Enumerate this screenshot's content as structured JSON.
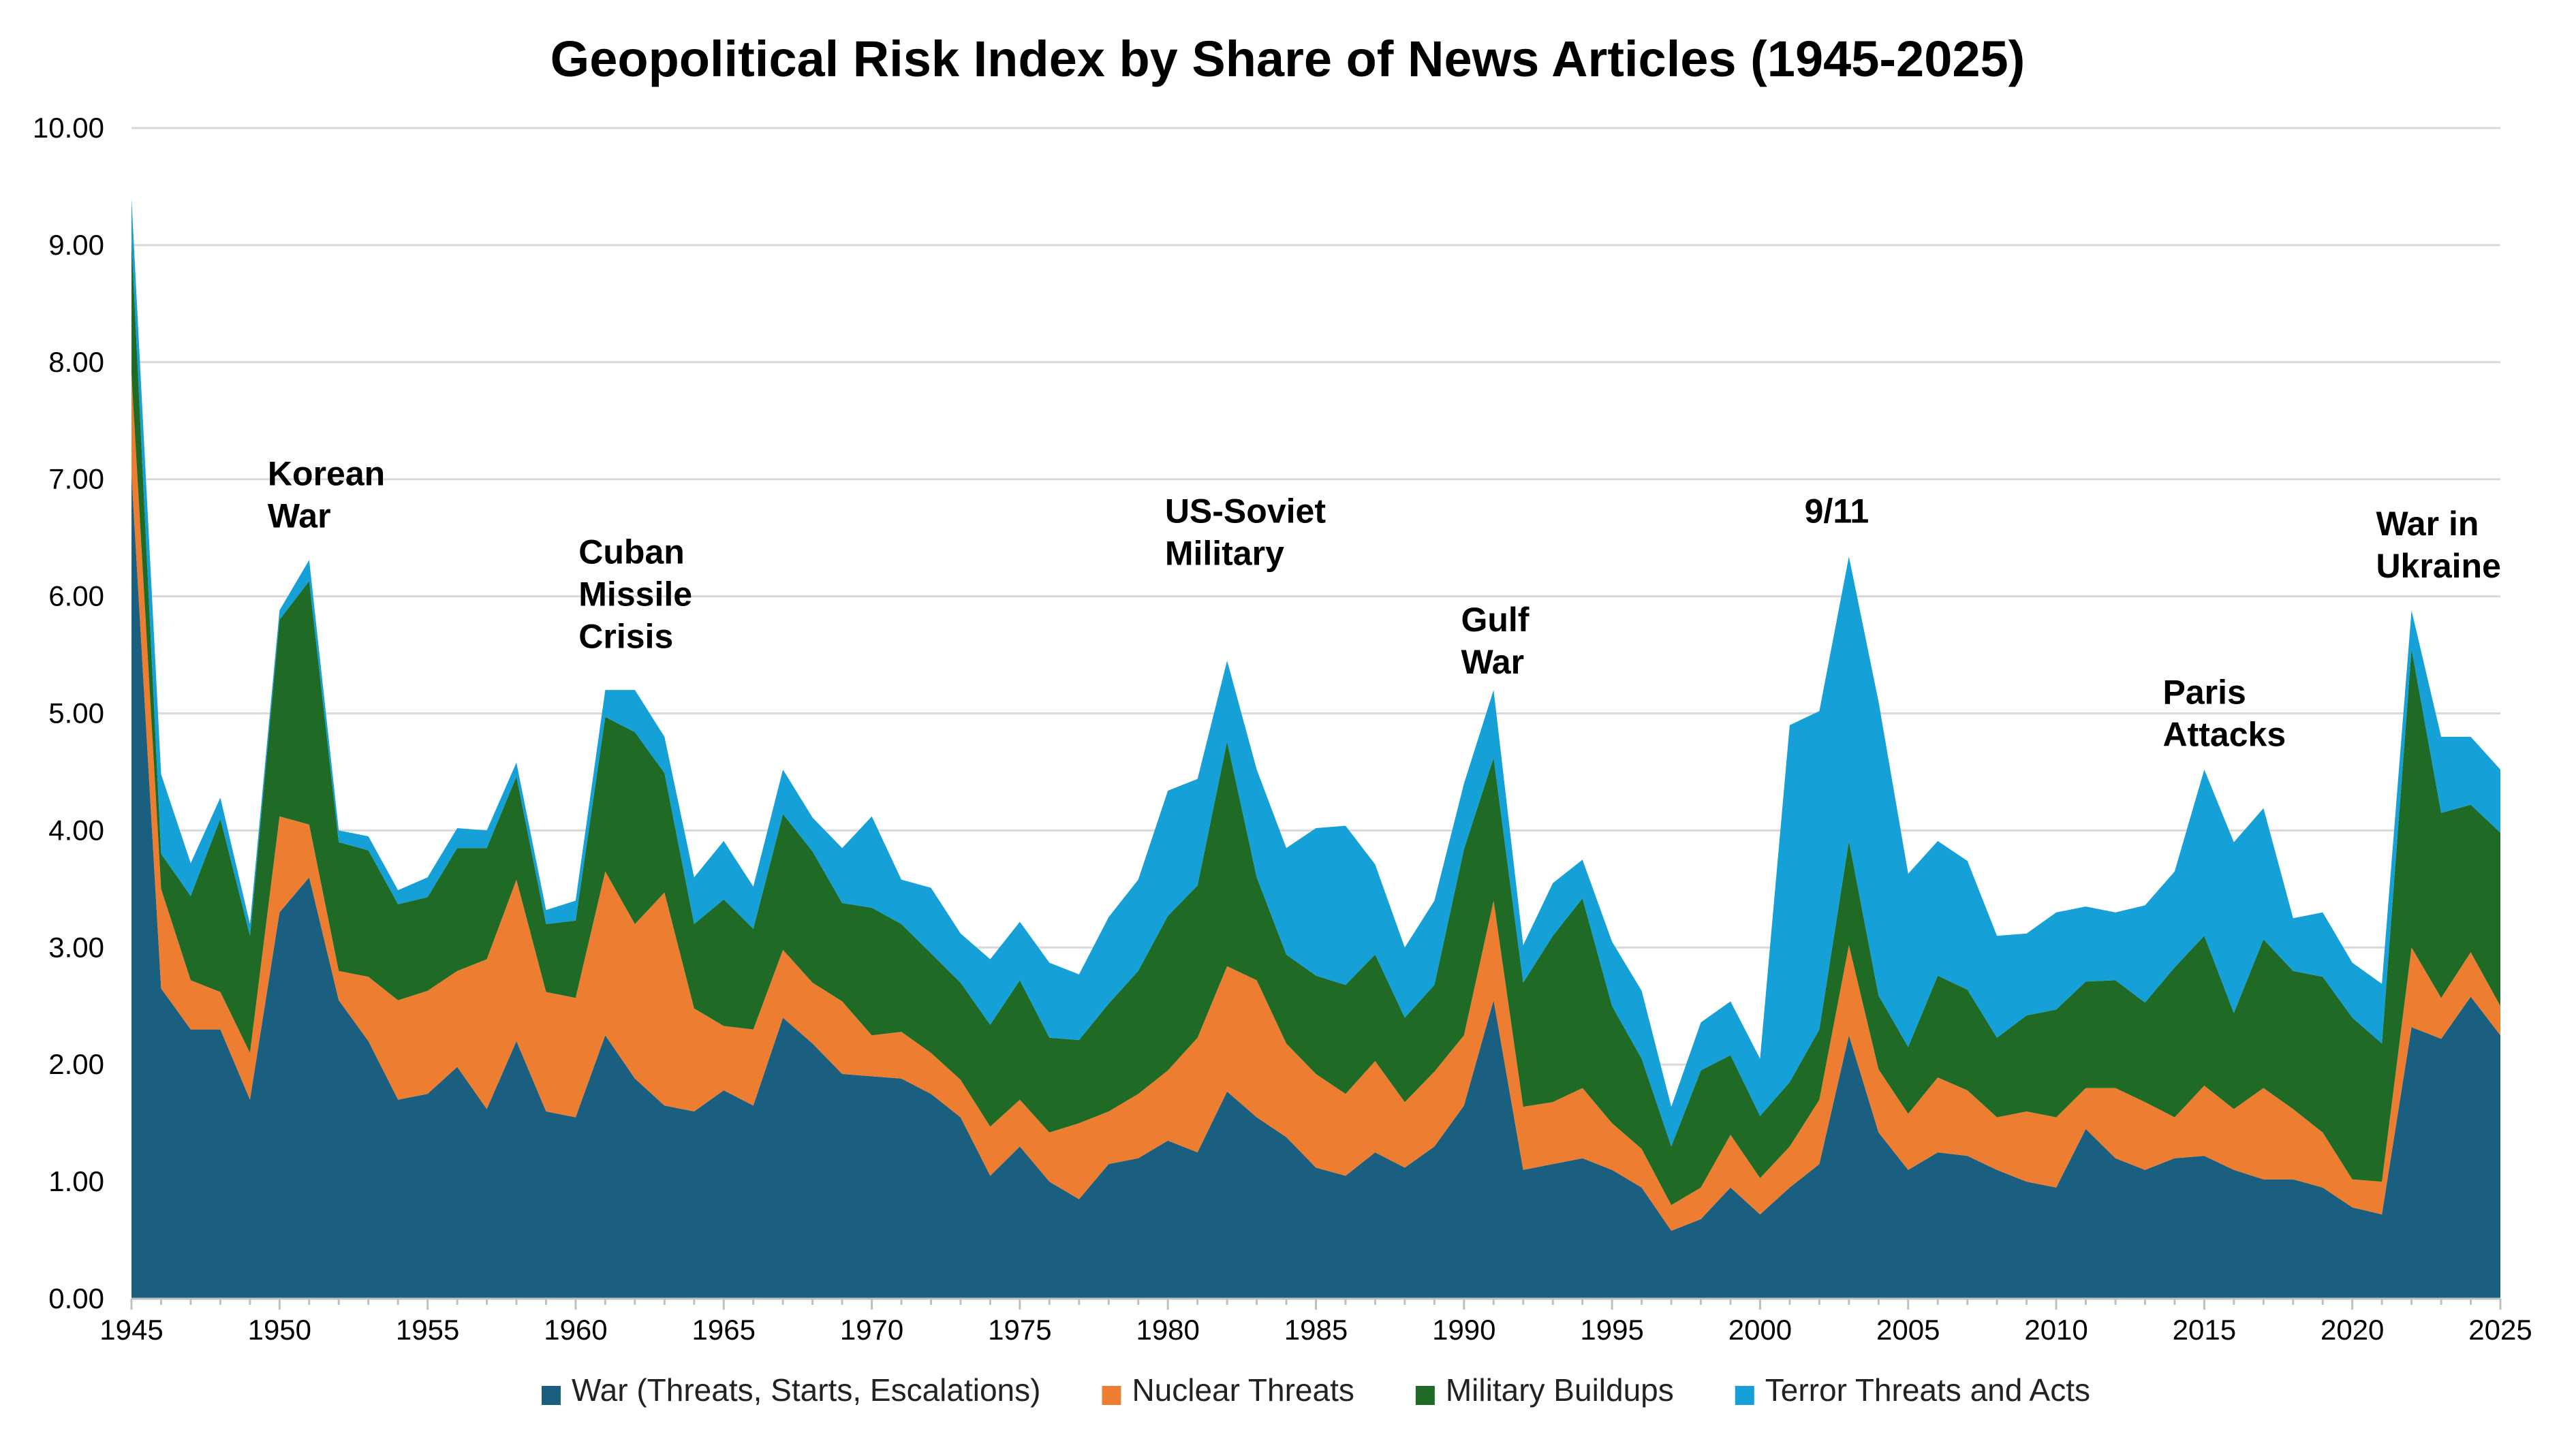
{
  "chart_data": {
    "type": "area",
    "stacked": true,
    "title": "Geopolitical Risk Index by Share of News Articles (1945-2025)",
    "xlabel": "",
    "ylabel": "",
    "ylim": [
      0,
      10
    ],
    "xlim": [
      1945,
      2025
    ],
    "y_ticks": [
      "0.00",
      "1.00",
      "2.00",
      "3.00",
      "4.00",
      "5.00",
      "6.00",
      "7.00",
      "8.00",
      "9.00",
      "10.00"
    ],
    "y_tick_values": [
      0,
      1,
      2,
      3,
      4,
      5,
      6,
      7,
      8,
      9,
      10
    ],
    "x_ticks": [
      "1945",
      "1950",
      "1955",
      "1960",
      "1965",
      "1970",
      "1975",
      "1980",
      "1985",
      "1990",
      "1995",
      "2000",
      "2005",
      "2010",
      "2015",
      "2020",
      "2025"
    ],
    "x_tick_values": [
      1945,
      1950,
      1955,
      1960,
      1965,
      1970,
      1975,
      1980,
      1985,
      1990,
      1995,
      2000,
      2005,
      2010,
      2015,
      2020,
      2025
    ],
    "grid": true,
    "legend_position": "bottom",
    "x": [
      1945,
      1946,
      1947,
      1948,
      1949,
      1950,
      1951,
      1952,
      1953,
      1954,
      1955,
      1956,
      1957,
      1958,
      1959,
      1960,
      1961,
      1962,
      1963,
      1964,
      1965,
      1966,
      1967,
      1968,
      1969,
      1970,
      1971,
      1972,
      1973,
      1974,
      1975,
      1976,
      1977,
      1978,
      1979,
      1980,
      1981,
      1982,
      1983,
      1984,
      1985,
      1986,
      1987,
      1988,
      1989,
      1990,
      1991,
      1992,
      1993,
      1994,
      1995,
      1996,
      1997,
      1998,
      1999,
      2000,
      2001,
      2002,
      2003,
      2004,
      2005,
      2006,
      2007,
      2008,
      2009,
      2010,
      2011,
      2012,
      2013,
      2014,
      2015,
      2016,
      2017,
      2018,
      2019,
      2020,
      2021,
      2022,
      2023,
      2024,
      2025
    ],
    "series": [
      {
        "name": "War (Threats, Starts, Escalations)",
        "color": "#1A5F80",
        "values": [
          7.05,
          2.65,
          2.3,
          2.3,
          1.7,
          3.3,
          3.6,
          2.55,
          2.2,
          1.7,
          1.75,
          1.98,
          1.62,
          2.2,
          1.6,
          1.55,
          2.25,
          1.88,
          1.65,
          1.6,
          1.78,
          1.65,
          2.4,
          2.18,
          1.92,
          1.9,
          1.88,
          1.75,
          1.55,
          1.05,
          1.3,
          1.0,
          0.85,
          1.15,
          1.2,
          1.35,
          1.25,
          1.77,
          1.55,
          1.38,
          1.12,
          1.05,
          1.25,
          1.12,
          1.3,
          1.65,
          2.55,
          1.1,
          1.15,
          1.2,
          1.1,
          0.95,
          0.58,
          0.68,
          0.95,
          0.72,
          0.95,
          1.15,
          2.25,
          1.42,
          1.1,
          1.25,
          1.22,
          1.1,
          1.0,
          0.95,
          1.45,
          1.2,
          1.1,
          1.2,
          1.22,
          1.1,
          1.02,
          1.02,
          0.95,
          0.78,
          0.72,
          2.32,
          2.22,
          2.58,
          2.25
        ]
      },
      {
        "name": "Nuclear Threats",
        "color": "#ED7D31",
        "values": [
          0.85,
          0.85,
          0.42,
          0.32,
          0.4,
          0.82,
          0.45,
          0.25,
          0.55,
          0.85,
          0.88,
          0.82,
          1.28,
          1.38,
          1.02,
          1.02,
          1.4,
          1.32,
          1.82,
          0.88,
          0.55,
          0.65,
          0.58,
          0.52,
          0.62,
          0.35,
          0.4,
          0.35,
          0.32,
          0.42,
          0.4,
          0.42,
          0.65,
          0.45,
          0.55,
          0.6,
          0.98,
          1.07,
          1.17,
          0.8,
          0.8,
          0.7,
          0.78,
          0.56,
          0.64,
          0.6,
          0.85,
          0.54,
          0.53,
          0.6,
          0.4,
          0.33,
          0.22,
          0.27,
          0.45,
          0.31,
          0.35,
          0.55,
          0.77,
          0.54,
          0.48,
          0.64,
          0.56,
          0.45,
          0.6,
          0.6,
          0.35,
          0.6,
          0.58,
          0.35,
          0.6,
          0.52,
          0.78,
          0.6,
          0.47,
          0.24,
          0.28,
          0.68,
          0.35,
          0.38,
          0.25
        ]
      },
      {
        "name": "Military Buildups",
        "color": "#1F6B26",
        "values": [
          1.15,
          0.3,
          0.72,
          1.48,
          1.0,
          1.68,
          2.08,
          1.1,
          1.08,
          0.82,
          0.8,
          1.05,
          0.95,
          0.88,
          0.58,
          0.66,
          1.32,
          1.64,
          1.02,
          0.72,
          1.08,
          0.86,
          1.16,
          1.12,
          0.84,
          1.09,
          0.92,
          0.85,
          0.83,
          0.87,
          1.02,
          0.81,
          0.71,
          0.92,
          1.05,
          1.32,
          1.3,
          1.92,
          0.88,
          0.76,
          0.84,
          0.93,
          0.91,
          0.72,
          0.74,
          1.59,
          1.22,
          1.06,
          1.42,
          1.62,
          1.0,
          0.77,
          0.5,
          1.0,
          0.68,
          0.53,
          0.55,
          0.6,
          0.89,
          0.63,
          0.57,
          0.87,
          0.86,
          0.68,
          0.82,
          0.92,
          0.91,
          0.92,
          0.85,
          1.28,
          1.28,
          0.82,
          1.27,
          1.18,
          1.33,
          1.38,
          1.18,
          2.55,
          1.58,
          1.26,
          1.48
        ]
      },
      {
        "name": "Terror Threats and Acts",
        "color": "#15A0D8",
        "values": [
          0.35,
          0.68,
          0.28,
          0.18,
          0.1,
          0.08,
          0.18,
          0.1,
          0.12,
          0.12,
          0.17,
          0.17,
          0.15,
          0.12,
          0.12,
          0.17,
          0.23,
          0.36,
          0.31,
          0.4,
          0.5,
          0.36,
          0.38,
          0.29,
          0.47,
          0.78,
          0.38,
          0.56,
          0.42,
          0.56,
          0.5,
          0.64,
          0.56,
          0.74,
          0.78,
          1.07,
          0.91,
          0.69,
          0.92,
          0.91,
          1.26,
          1.36,
          0.77,
          0.6,
          0.72,
          0.56,
          0.58,
          0.32,
          0.45,
          0.33,
          0.55,
          0.58,
          0.34,
          0.41,
          0.46,
          0.49,
          3.05,
          2.72,
          2.43,
          2.51,
          1.48,
          1.15,
          1.1,
          0.87,
          0.7,
          0.83,
          0.64,
          0.58,
          0.83,
          0.82,
          1.42,
          1.46,
          1.12,
          0.45,
          0.55,
          0.47,
          0.51,
          0.33,
          0.65,
          0.58,
          0.54
        ]
      }
    ],
    "annotations": [
      {
        "lines": [
          "Korean",
          "War"
        ],
        "year": 1949.6,
        "value": 6.95
      },
      {
        "lines": [
          "Cuban",
          "Missile",
          "Crisis"
        ],
        "year": 1960.1,
        "value": 6.28
      },
      {
        "lines": [
          "US-Soviet",
          "Military"
        ],
        "year": 1979.9,
        "value": 6.63
      },
      {
        "lines": [
          "Gulf",
          "War"
        ],
        "year": 1989.9,
        "value": 5.7
      },
      {
        "lines": [
          "9/11"
        ],
        "year": 2001.5,
        "value": 6.63
      },
      {
        "lines": [
          "Paris",
          "Attacks"
        ],
        "year": 2013.6,
        "value": 5.08
      },
      {
        "lines": [
          "War in",
          "Ukraine"
        ],
        "year": 2020.8,
        "value": 6.52
      }
    ]
  }
}
